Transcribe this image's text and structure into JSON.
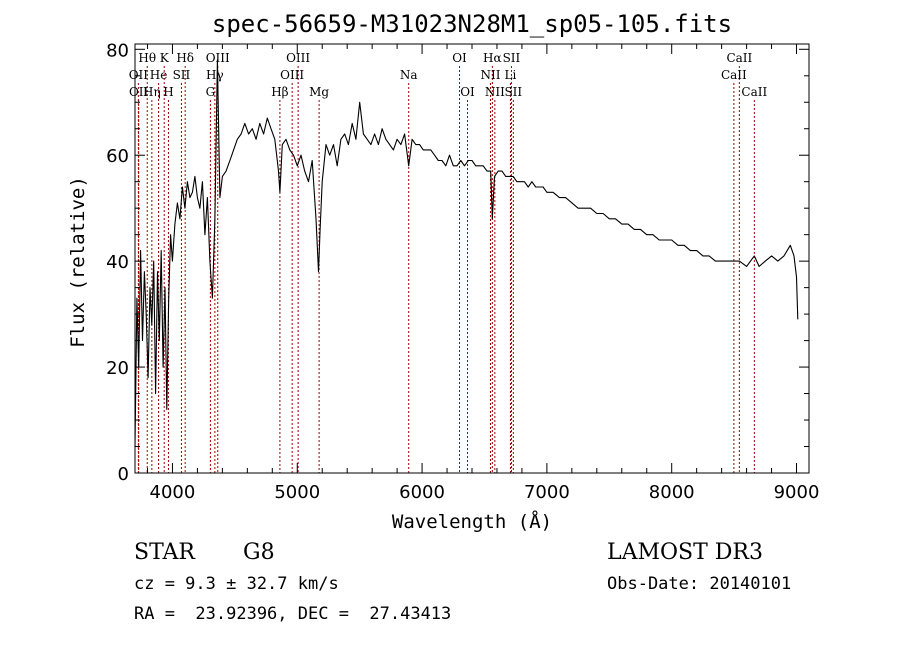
{
  "chart_data": {
    "type": "line",
    "title": "spec-56659-M31023N28M1_sp05-105.fits",
    "xlabel": "Wavelength (Å)",
    "ylabel": "Flux (relative)",
    "xlim": [
      3700,
      9100
    ],
    "ylim": [
      0,
      81
    ],
    "xticks": [
      4000,
      5000,
      6000,
      7000,
      8000,
      9000
    ],
    "yticks": [
      0,
      20,
      40,
      60,
      80
    ],
    "grid": false,
    "line_color": "#000000",
    "marker_line_color": "#a00000",
    "spectrum": {
      "x": [
        3700,
        3715,
        3730,
        3745,
        3760,
        3775,
        3790,
        3805,
        3820,
        3835,
        3850,
        3865,
        3880,
        3895,
        3910,
        3925,
        3940,
        3955,
        3970,
        3985,
        4000,
        4020,
        4040,
        4060,
        4080,
        4100,
        4120,
        4140,
        4160,
        4180,
        4200,
        4220,
        4240,
        4260,
        4280,
        4300,
        4320,
        4340,
        4360,
        4380,
        4400,
        4430,
        4460,
        4490,
        4520,
        4550,
        4580,
        4610,
        4640,
        4670,
        4700,
        4730,
        4760,
        4790,
        4820,
        4850,
        4861,
        4880,
        4910,
        4940,
        4970,
        5000,
        5030,
        5060,
        5090,
        5120,
        5150,
        5170,
        5183,
        5200,
        5230,
        5260,
        5290,
        5320,
        5350,
        5380,
        5410,
        5440,
        5470,
        5500,
        5530,
        5560,
        5590,
        5620,
        5650,
        5680,
        5710,
        5740,
        5770,
        5800,
        5830,
        5860,
        5893,
        5920,
        5950,
        5980,
        6010,
        6040,
        6070,
        6100,
        6130,
        6160,
        6190,
        6220,
        6250,
        6280,
        6310,
        6340,
        6370,
        6400,
        6430,
        6460,
        6490,
        6520,
        6550,
        6563,
        6580,
        6610,
        6640,
        6670,
        6700,
        6730,
        6760,
        6790,
        6820,
        6850,
        6880,
        6910,
        6940,
        6970,
        7000,
        7050,
        7100,
        7150,
        7200,
        7250,
        7300,
        7350,
        7400,
        7450,
        7500,
        7550,
        7600,
        7650,
        7700,
        7750,
        7800,
        7850,
        7900,
        7950,
        8000,
        8050,
        8100,
        8150,
        8200,
        8250,
        8300,
        8350,
        8400,
        8450,
        8500,
        8542,
        8600,
        8662,
        8700,
        8750,
        8800,
        8850,
        8900,
        8950,
        8980,
        9000,
        9010
      ],
      "y": [
        5,
        33,
        20,
        42,
        25,
        38,
        30,
        18,
        35,
        28,
        40,
        15,
        38,
        25,
        42,
        20,
        35,
        12,
        33,
        45,
        40,
        47,
        51,
        48,
        54,
        50,
        55,
        52,
        53,
        56,
        52,
        50,
        55,
        45,
        52,
        40,
        33,
        48,
        78,
        52,
        56,
        57,
        59,
        61,
        63,
        64,
        66,
        64,
        65,
        63,
        66,
        64,
        67,
        65,
        63,
        57,
        53,
        62,
        63,
        61,
        60,
        58,
        60,
        57,
        55,
        59,
        48,
        38,
        46,
        55,
        62,
        60,
        62,
        58,
        63,
        64,
        62,
        66,
        63,
        70,
        64,
        63,
        62,
        64,
        62,
        65,
        63,
        62,
        61,
        63,
        62,
        64,
        58,
        63,
        62,
        62,
        61,
        61,
        61,
        60,
        59,
        59,
        58,
        60,
        58,
        58,
        59,
        58,
        59,
        59,
        58,
        58,
        58,
        57,
        57,
        48,
        56,
        57,
        57,
        56,
        56,
        56,
        55,
        55,
        55,
        54,
        55,
        54,
        54,
        54,
        53,
        53,
        52,
        52,
        51,
        50,
        50,
        50,
        49,
        49,
        48,
        48,
        47,
        47,
        46,
        46,
        45,
        45,
        44,
        44,
        44,
        43,
        43,
        42,
        42,
        41,
        41,
        40,
        40,
        40,
        40,
        40,
        39,
        41,
        39,
        40,
        41,
        40,
        41,
        43,
        41,
        37,
        29
      ]
    },
    "line_markers": [
      {
        "label": "Hθ",
        "wavelength": 3798,
        "row": 0
      },
      {
        "label": "OII",
        "wavelength": 3727,
        "row": 1
      },
      {
        "label": "OII",
        "wavelength": 3729,
        "row": 2
      },
      {
        "label": "He",
        "wavelength": 3889,
        "row": 1
      },
      {
        "label": "Hη",
        "wavelength": 3835,
        "row": 2
      },
      {
        "label": "K",
        "wavelength": 3934,
        "row": 0
      },
      {
        "label": "H",
        "wavelength": 3968,
        "row": 2
      },
      {
        "label": "Hδ",
        "wavelength": 4102,
        "row": 0
      },
      {
        "label": "SII",
        "wavelength": 4072,
        "row": 1
      },
      {
        "label": "OIII",
        "wavelength": 4363,
        "row": 0
      },
      {
        "label": "Hγ",
        "wavelength": 4340,
        "row": 1
      },
      {
        "label": "G",
        "wavelength": 4304,
        "row": 2
      },
      {
        "label": "Hβ",
        "wavelength": 4861,
        "row": 2
      },
      {
        "label": "OIII",
        "wavelength": 5007,
        "row": 0
      },
      {
        "label": "OIII",
        "wavelength": 4959,
        "row": 1
      },
      {
        "label": "Mg",
        "wavelength": 5175,
        "row": 2
      },
      {
        "label": "Na",
        "wavelength": 5893,
        "row": 1
      },
      {
        "label": "OI",
        "wavelength": 6300,
        "row": 0
      },
      {
        "label": "OI",
        "wavelength": 6364,
        "row": 2
      },
      {
        "label": "Hα",
        "wavelength": 6563,
        "row": 0
      },
      {
        "label": "NII",
        "wavelength": 6548,
        "row": 1
      },
      {
        "label": "NII",
        "wavelength": 6583,
        "row": 2
      },
      {
        "label": "SII",
        "wavelength": 6716,
        "row": 0
      },
      {
        "label": "Li",
        "wavelength": 6708,
        "row": 1
      },
      {
        "label": "SII",
        "wavelength": 6731,
        "row": 2
      },
      {
        "label": "CaII",
        "wavelength": 8542,
        "row": 0
      },
      {
        "label": "CaII",
        "wavelength": 8498,
        "row": 1
      },
      {
        "label": "CaII",
        "wavelength": 8662,
        "row": 2
      }
    ]
  },
  "info": {
    "class_label": "STAR",
    "subclass_label": "G8",
    "survey": "LAMOST DR3",
    "cz": "cz = 9.3 ± 32.7 km/s",
    "obs_date": "Obs-Date: 20140101",
    "coords": "RA =  23.92396, DEC =  27.43413"
  }
}
